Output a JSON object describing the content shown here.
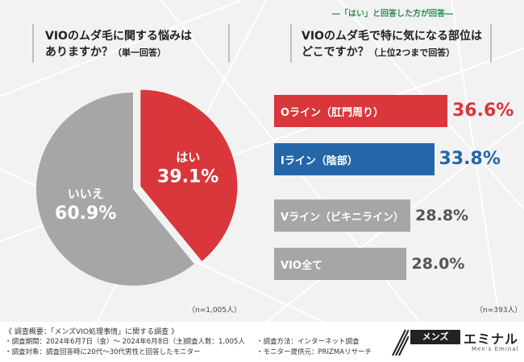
{
  "top_note": "―「はい」と回答した方が回答―",
  "left": {
    "question_line1": "VIOのムダ毛に関する悩みは",
    "question_line2": "ありますか？",
    "question_sub": "（単一回答）",
    "n_note": "（n=1,005人）"
  },
  "right": {
    "question_line1": "VIOのムダ毛で特に気になる部位は",
    "question_line2": "どこですか？",
    "question_sub": "（上位2つまで回答）",
    "n_note": "（n=393人）"
  },
  "chart_data": [
    {
      "type": "pie",
      "title": "VIOのムダ毛に関する悩みはありますか？（単一回答）",
      "slices": [
        {
          "label": "はい",
          "value": 39.1,
          "value_text": "39.1%",
          "color": "#d9373b"
        },
        {
          "label": "いいえ",
          "value": 60.9,
          "value_text": "60.9%",
          "color": "#a6a6a6"
        }
      ]
    },
    {
      "type": "bar",
      "orientation": "horizontal",
      "title": "VIOのムダ毛で特に気になる部位はどこですか？（上位2つまで回答）",
      "categories": [
        "Oライン（肛門周り）",
        "Iライン（陰部）",
        "Vライン（ビキニライン）",
        "VIO全て"
      ],
      "values": [
        36.6,
        33.8,
        28.8,
        28.0
      ],
      "value_texts": [
        "36.6%",
        "33.8%",
        "28.8%",
        "28.0%"
      ],
      "colors": [
        "#d9373b",
        "#2466a8",
        "#a6a6a6",
        "#a6a6a6"
      ],
      "value_colors": [
        "#d9373b",
        "#2466a8",
        "#555555",
        "#555555"
      ],
      "xlim": [
        0,
        36.6
      ]
    }
  ],
  "footer": {
    "title": "《 調査概要：「メンズVIO処理事情」に関する調査 》",
    "period": "・調査期間：2024年6月7日（金）～ 2024年6月8日（土）",
    "count": "・調査人数：1,005人",
    "method": "・調査方法：インターネット調査",
    "target": "・調査対象：調査回答時に20代〜30代男性と回答したモニター",
    "provider": "・モニター提供元：PRIZMAリサーチ"
  },
  "logo": {
    "box_text": "メンズ",
    "main_text": "エミナル",
    "sub_text": "Men's Eminal"
  }
}
